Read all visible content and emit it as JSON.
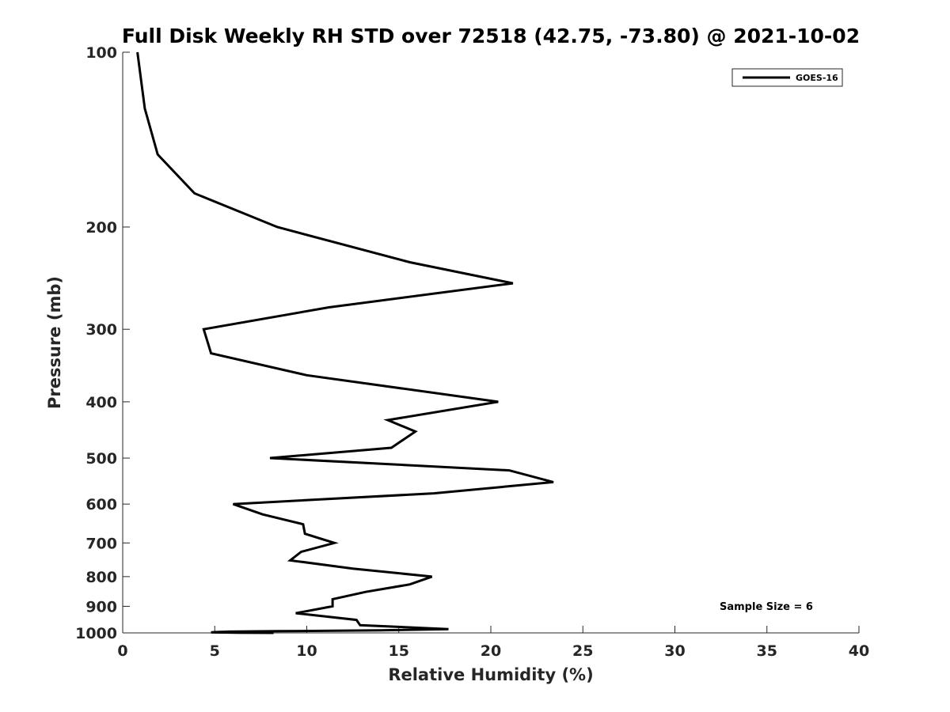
{
  "chart_data": {
    "type": "line",
    "title": "Full Disk Weekly RH STD over 72518 (42.75, -73.80) @ 2021-10-02",
    "xlabel": "Relative Humidity (%)",
    "ylabel": "Pressure (mb)",
    "xlim": [
      0,
      40
    ],
    "ylim": [
      100,
      1000
    ],
    "y_scale": "log",
    "y_reversed": true,
    "x_ticks": [
      0,
      5,
      10,
      15,
      20,
      25,
      30,
      35,
      40
    ],
    "y_ticks": [
      100,
      200,
      300,
      400,
      500,
      600,
      700,
      800,
      900,
      1000
    ],
    "grid": false,
    "legend_position": "top-right",
    "annotation": "Sample Size = 6",
    "series": [
      {
        "name": "GOES-16",
        "color": "#000000",
        "points": [
          [
            0.8,
            100
          ],
          [
            1.2,
            125
          ],
          [
            1.9,
            150
          ],
          [
            3.9,
            175
          ],
          [
            8.4,
            200
          ],
          [
            15.6,
            230
          ],
          [
            21.2,
            250
          ],
          [
            11.2,
            275
          ],
          [
            4.4,
            300
          ],
          [
            4.8,
            330
          ],
          [
            10.0,
            360
          ],
          [
            20.4,
            400
          ],
          [
            14.4,
            430
          ],
          [
            15.9,
            450
          ],
          [
            14.6,
            480
          ],
          [
            8.0,
            500
          ],
          [
            21.0,
            525
          ],
          [
            23.4,
            550
          ],
          [
            16.9,
            575
          ],
          [
            6.0,
            600
          ],
          [
            7.6,
            625
          ],
          [
            9.8,
            650
          ],
          [
            9.9,
            675
          ],
          [
            11.5,
            700
          ],
          [
            9.7,
            725
          ],
          [
            9.1,
            750
          ],
          [
            12.5,
            775
          ],
          [
            16.8,
            800
          ],
          [
            15.6,
            825
          ],
          [
            13.2,
            850
          ],
          [
            11.4,
            875
          ],
          [
            11.4,
            900
          ],
          [
            9.4,
            925
          ],
          [
            12.7,
            950
          ],
          [
            12.9,
            970
          ],
          [
            17.7,
            985
          ],
          [
            14.0,
            990
          ],
          [
            8.5,
            993
          ],
          [
            5.8,
            995
          ],
          [
            5.0,
            997
          ],
          [
            4.8,
            998
          ],
          [
            6.3,
            999
          ],
          [
            5.8,
            999.5
          ],
          [
            8.2,
            1000
          ],
          [
            7.8,
            1000
          ]
        ]
      }
    ]
  }
}
